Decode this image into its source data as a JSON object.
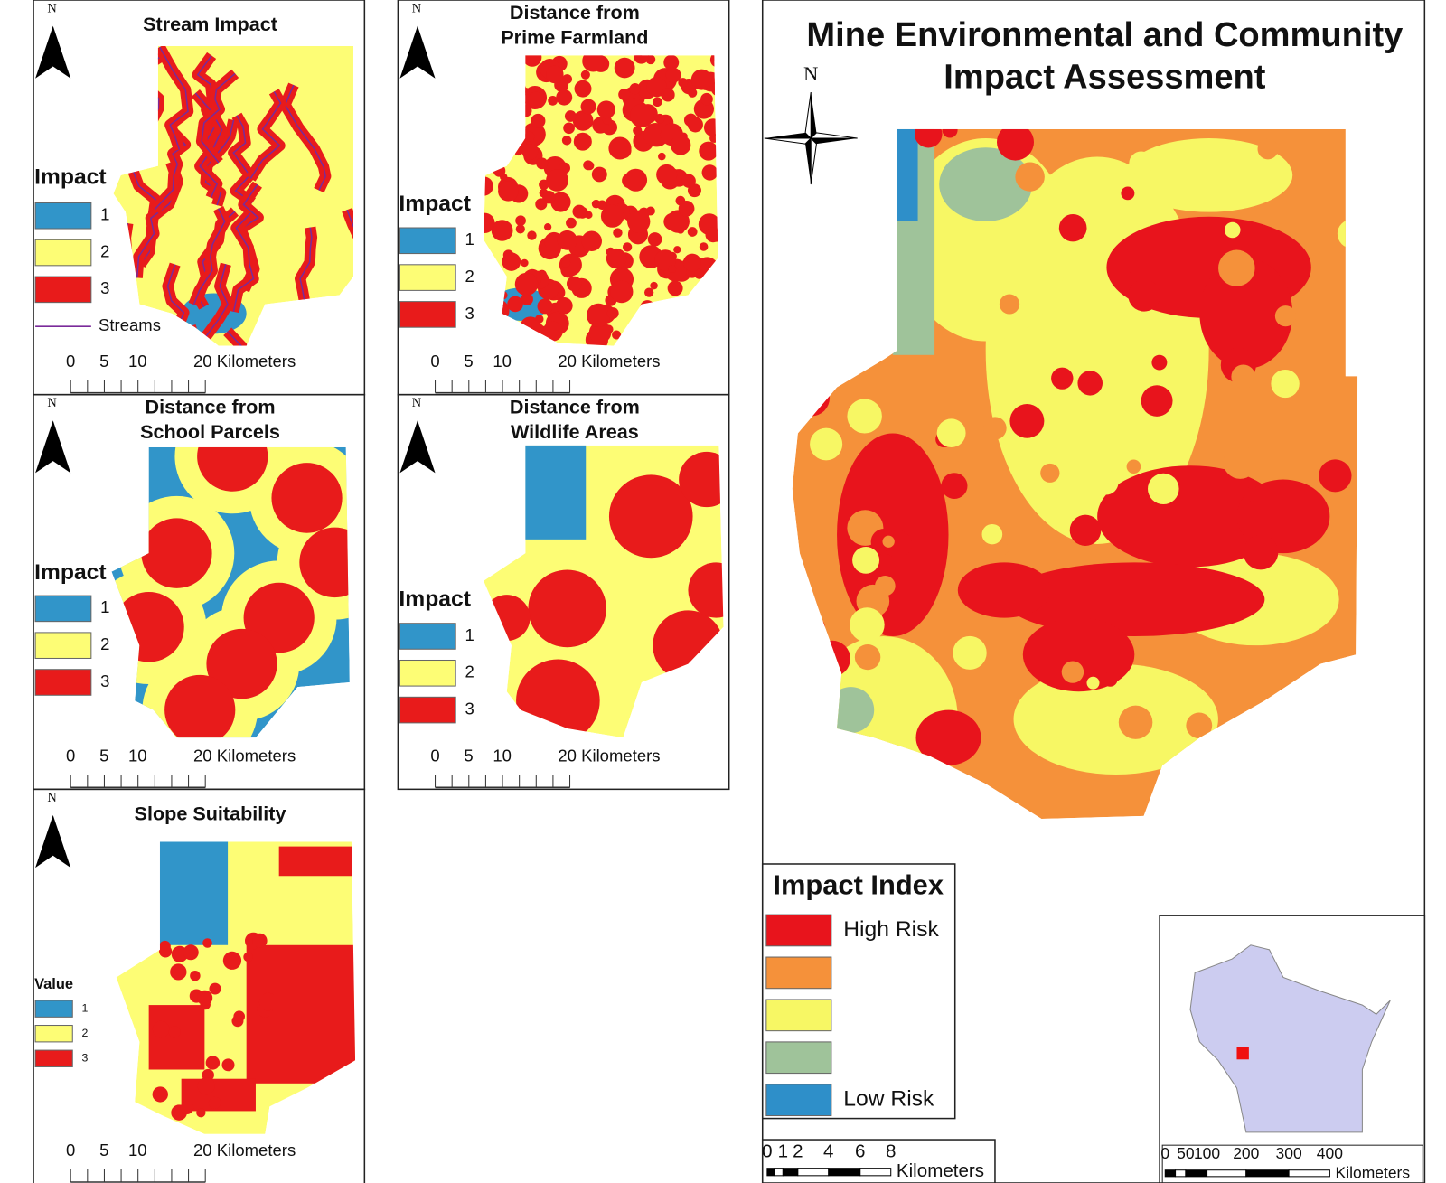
{
  "panels": [
    {
      "title_lines": [
        "Stream Impact"
      ],
      "north": "N",
      "legend_title": "Impact",
      "legend": [
        {
          "label": "1",
          "color": "#3195c9"
        },
        {
          "label": "2",
          "color": "#fdfd75"
        },
        {
          "label": "3",
          "color": "#e81b1b"
        }
      ],
      "extra_legend": "Streams",
      "scale_labels": [
        "0",
        "5",
        "10",
        "20 Kilometers"
      ]
    },
    {
      "title_lines": [
        "Distance from",
        "Prime Farmland"
      ],
      "north": "N",
      "legend_title": "Impact",
      "legend": [
        {
          "label": "1",
          "color": "#3195c9"
        },
        {
          "label": "2",
          "color": "#fdfd75"
        },
        {
          "label": "3",
          "color": "#e81b1b"
        }
      ],
      "scale_labels": [
        "0",
        "5",
        "10",
        "20 Kilometers"
      ]
    },
    {
      "title_lines": [
        "Distance from",
        "School Parcels"
      ],
      "north": "N",
      "legend_title": "Impact",
      "legend": [
        {
          "label": "1",
          "color": "#3195c9"
        },
        {
          "label": "2",
          "color": "#fdfd75"
        },
        {
          "label": "3",
          "color": "#e81b1b"
        }
      ],
      "scale_labels": [
        "0",
        "5",
        "10",
        "20 Kilometers"
      ]
    },
    {
      "title_lines": [
        "Distance from",
        "Wildlife Areas"
      ],
      "north": "N",
      "legend_title": "Impact",
      "legend": [
        {
          "label": "1",
          "color": "#3195c9"
        },
        {
          "label": "2",
          "color": "#fdfd75"
        },
        {
          "label": "3",
          "color": "#e81b1b"
        }
      ],
      "scale_labels": [
        "0",
        "5",
        "10",
        "20 Kilometers"
      ]
    },
    {
      "title_lines": [
        "Slope Suitability"
      ],
      "north": "N",
      "legend_title": "Value",
      "legend": [
        {
          "label": "1",
          "color": "#3195c9"
        },
        {
          "label": "2",
          "color": "#fdfd75"
        },
        {
          "label": "3",
          "color": "#e81b1b"
        }
      ],
      "scale_labels": [
        "0",
        "5",
        "10",
        "20 Kilometers"
      ]
    }
  ],
  "main": {
    "title_lines": [
      "Mine Environmental and Community",
      "Impact Assessment"
    ],
    "north": "N",
    "legend_title": "Impact Index",
    "legend": [
      {
        "label": "High Risk",
        "color": "#e8141c"
      },
      {
        "color": "#f5913a"
      },
      {
        "color": "#f7f764"
      },
      {
        "color": "#9fc39a"
      },
      {
        "label": "Low Risk",
        "color": "#2e8fc9"
      }
    ],
    "scale_labels": [
      "0",
      "1",
      "2",
      "4",
      "6",
      "8"
    ],
    "scale_unit": "Kilometers",
    "inset_scale_labels": [
      "0",
      "50",
      "100",
      "200",
      "300",
      "400"
    ],
    "inset_scale_unit": "Kilometers"
  }
}
